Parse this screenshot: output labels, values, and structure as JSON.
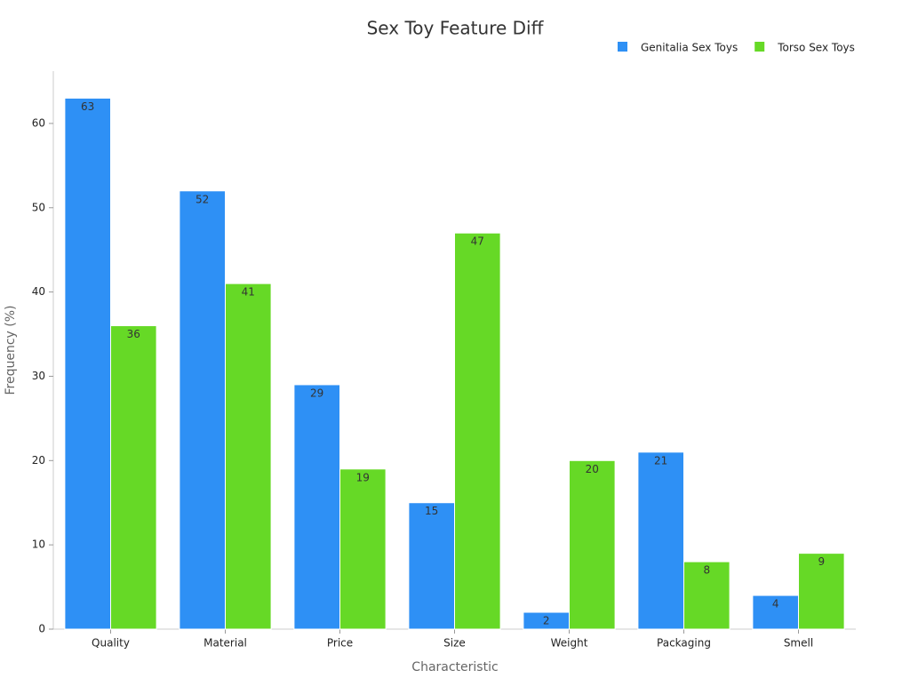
{
  "chart_data": {
    "type": "bar",
    "title": "Sex Toy Feature Diff",
    "x_label": "Characteristic",
    "y_label": "Frequency (%)",
    "categories": [
      "Quality",
      "Material",
      "Price",
      "Size",
      "Weight",
      "Packaging",
      "Smell"
    ],
    "series": [
      {
        "name": "Genitalia Sex Toys",
        "color": "#2e90f5",
        "values": [
          63,
          52,
          29,
          15,
          2,
          21,
          4
        ]
      },
      {
        "name": "Torso Sex Toys",
        "color": "#66d926",
        "values": [
          36,
          41,
          19,
          47,
          20,
          8,
          9
        ]
      }
    ],
    "ylim": [
      0,
      66
    ],
    "yticks": [
      0,
      10,
      20,
      30,
      40,
      50,
      60
    ],
    "grid": false,
    "legend": "top-right"
  }
}
